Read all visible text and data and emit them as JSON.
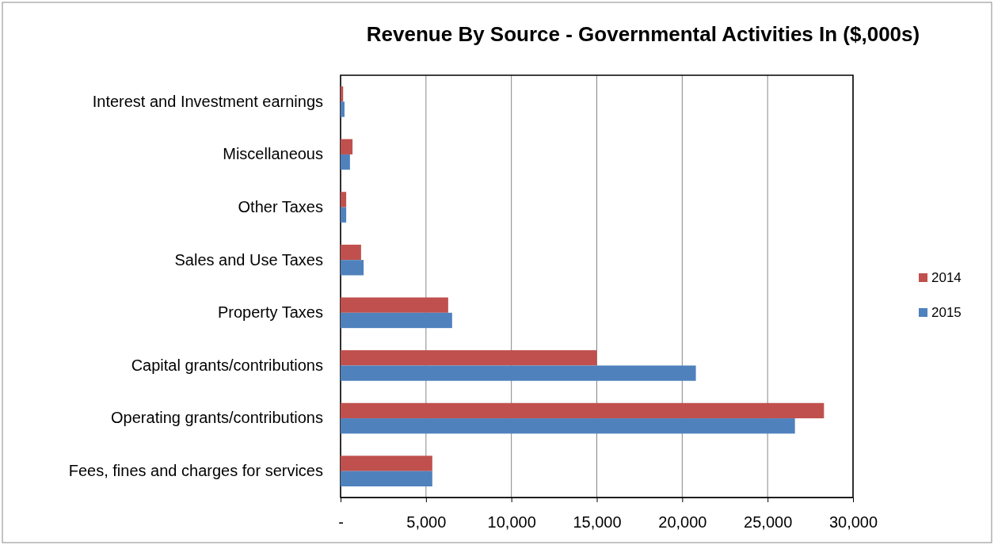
{
  "chart_data": {
    "type": "bar",
    "orientation": "horizontal",
    "title": "Revenue By Source - Governmental Activities In ($,000s)",
    "categories": [
      "Interest and Investment earnings",
      "Miscellaneous",
      "Other Taxes",
      "Sales and Use Taxes",
      "Property Taxes",
      "Capital grants/contributions",
      "Operating grants/contributions",
      "Fees, fines and charges for services"
    ],
    "series": [
      {
        "name": "2014",
        "color": "#c0504d",
        "values": [
          150,
          700,
          330,
          1200,
          6300,
          15000,
          28300,
          5370
        ]
      },
      {
        "name": "2015",
        "color": "#4f81bd",
        "values": [
          230,
          550,
          330,
          1350,
          6530,
          20800,
          26600,
          5370
        ]
      }
    ],
    "xlim": [
      0,
      30000
    ],
    "xticks": [
      {
        "value": 0,
        "label": "-"
      },
      {
        "value": 5000,
        "label": "5,000"
      },
      {
        "value": 10000,
        "label": "10,000"
      },
      {
        "value": 15000,
        "label": "15,000"
      },
      {
        "value": 20000,
        "label": "20,000"
      },
      {
        "value": 25000,
        "label": "25,000"
      },
      {
        "value": 30000,
        "label": "30,000"
      }
    ],
    "grid": "x",
    "legend": "right"
  }
}
